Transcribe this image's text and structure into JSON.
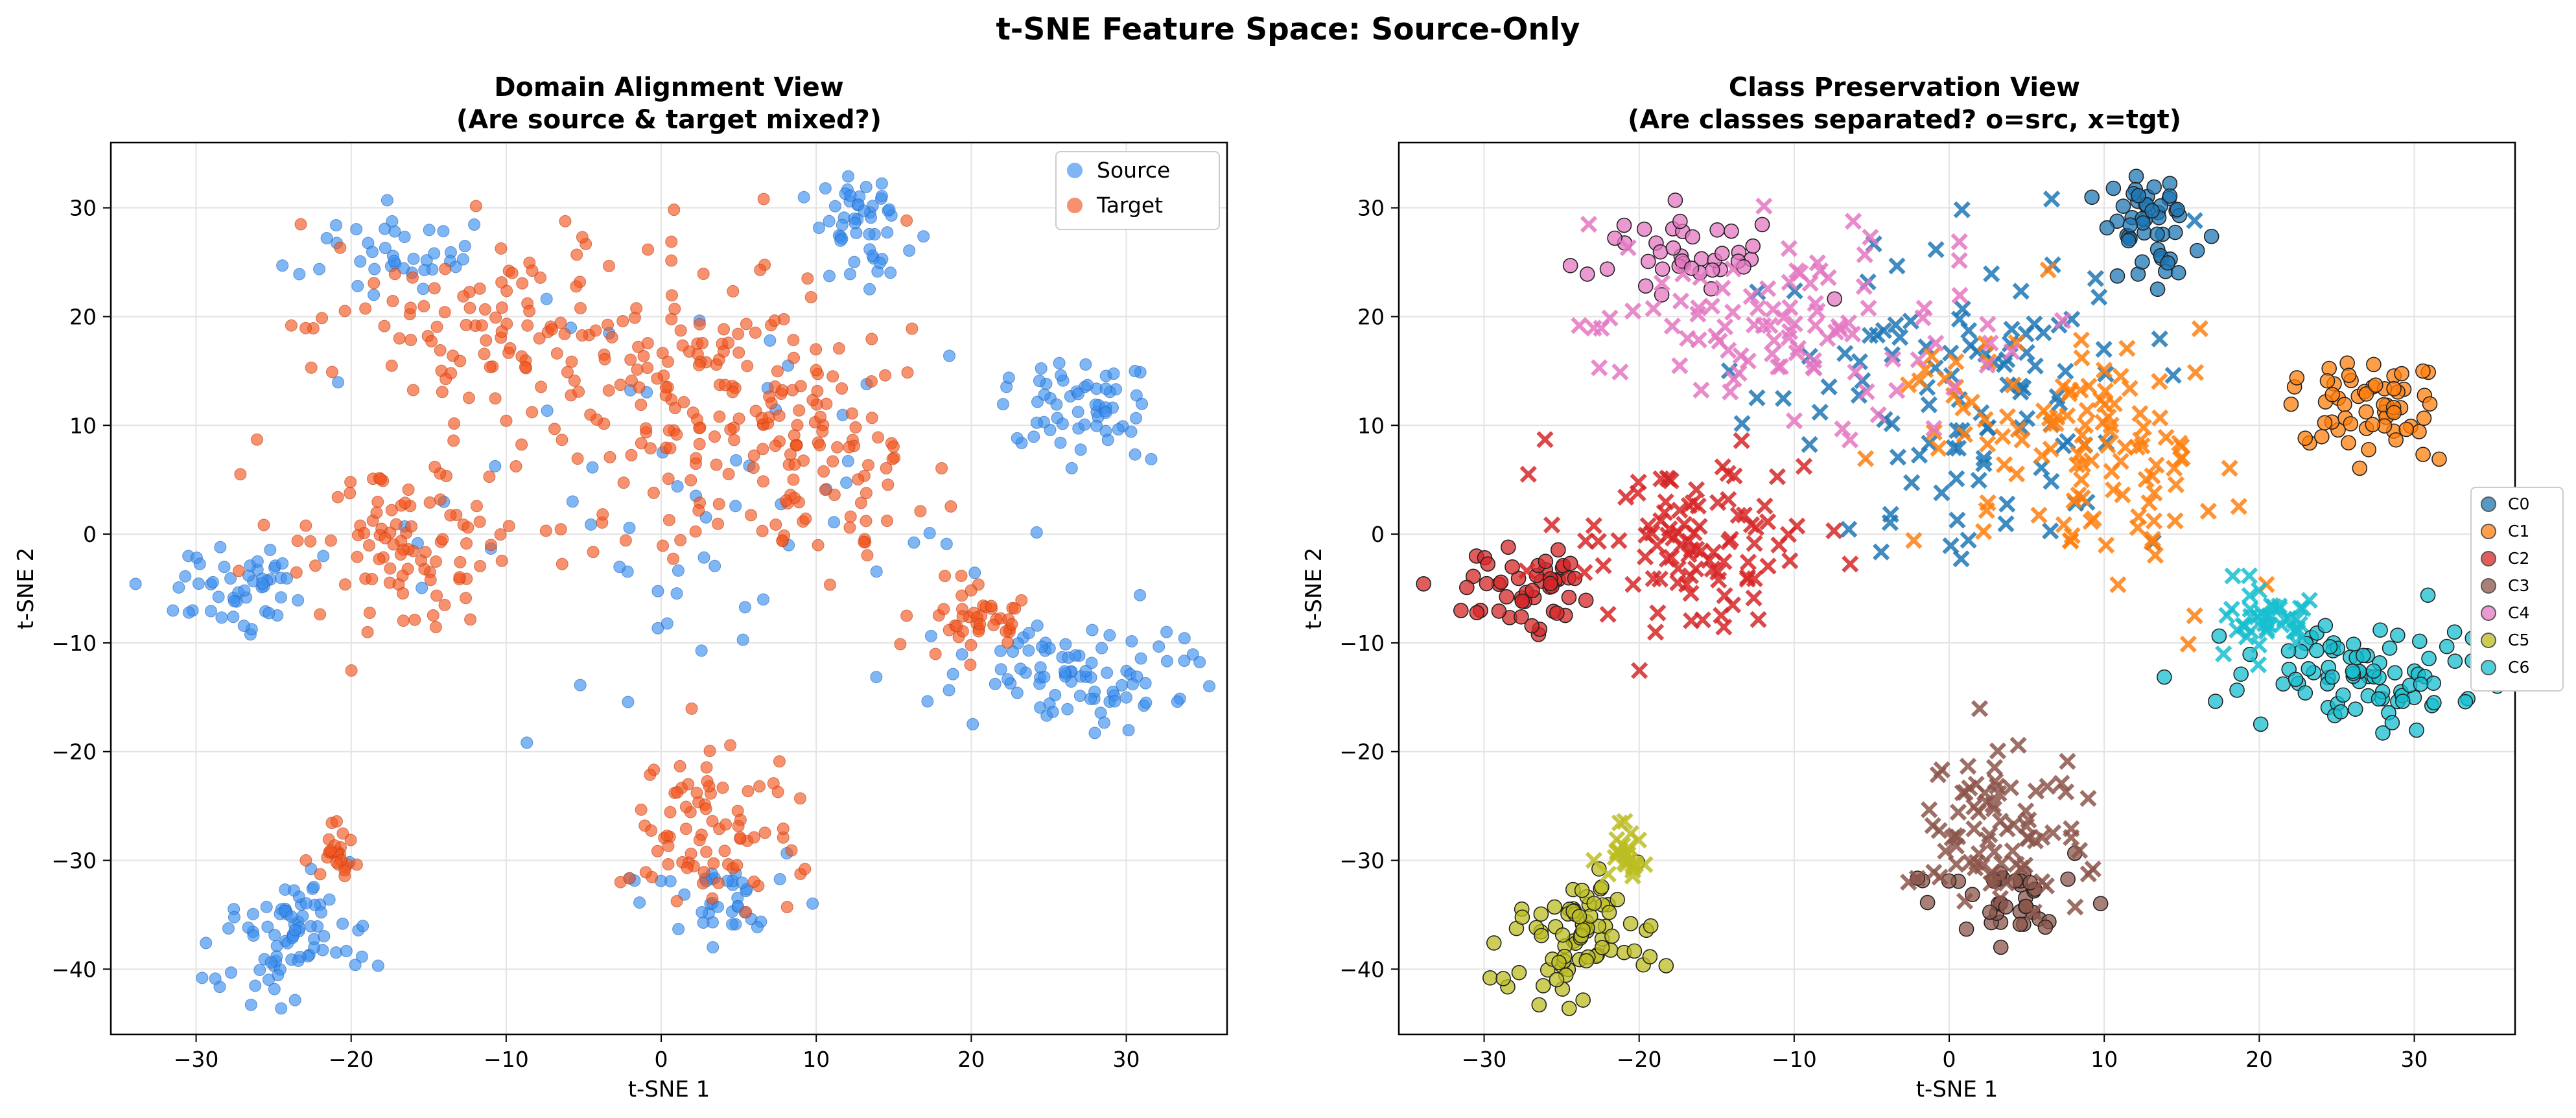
{
  "suptitle": "t-SNE Feature Space: Source-Only",
  "panels": [
    {
      "title_line1": "Domain Alignment View",
      "title_line2": "(Are source & target mixed?)"
    },
    {
      "title_line1": "Class Preservation View",
      "title_line2": "(Are classes separated? o=src, x=tgt)"
    }
  ],
  "colors": {
    "source": "#3b8fef",
    "target": "#f4561e",
    "C0": "#1f77b4",
    "C1": "#ff7f0e",
    "C2": "#d62728",
    "C3": "#8c564b",
    "C4": "#e377c2",
    "C5": "#bcbd22",
    "C6": "#17becf"
  },
  "legend_left": [
    {
      "label": "Source",
      "color": "#3b8fef"
    },
    {
      "label": "Target",
      "color": "#f4561e"
    }
  ],
  "legend_right": [
    {
      "label": "C0",
      "color": "#1f77b4"
    },
    {
      "label": "C1",
      "color": "#ff7f0e"
    },
    {
      "label": "C2",
      "color": "#d62728"
    },
    {
      "label": "C3",
      "color": "#8c564b"
    },
    {
      "label": "C4",
      "color": "#e377c2"
    },
    {
      "label": "C5",
      "color": "#bcbd22"
    },
    {
      "label": "C6",
      "color": "#17becf"
    }
  ],
  "chart_data": [
    {
      "type": "scatter",
      "title": "Domain Alignment View\n(Are source & target mixed?)",
      "xlabel": "t-SNE 1",
      "ylabel": "t-SNE 2",
      "xlim": [
        -35.5,
        36.5
      ],
      "ylim": [
        -46,
        36
      ],
      "xticks": [
        -30,
        -20,
        -10,
        0,
        10,
        20,
        30
      ],
      "yticks": [
        -40,
        -30,
        -20,
        -10,
        0,
        10,
        20,
        30
      ],
      "xticklabels": [
        "−30",
        "−20",
        "−10",
        "0",
        "10",
        "20",
        "30"
      ],
      "yticklabels": [
        "−40",
        "−30",
        "−20",
        "−10",
        "0",
        "10",
        "20",
        "30"
      ],
      "grid": true,
      "legend_position": "upper right",
      "series": [
        {
          "name": "Source",
          "marker": "o",
          "clusters": [
            {
              "class": "C0",
              "cx": 13,
              "cy": 28,
              "sx": 1.5,
              "sy": 2.5,
              "n": 50
            },
            {
              "class": "C1",
              "cx": 27,
              "cy": 12,
              "sx": 2.5,
              "sy": 2.2,
              "n": 60
            },
            {
              "class": "C2",
              "cx": -27,
              "cy": -5,
              "sx": 2.4,
              "sy": 1.8,
              "n": 50
            },
            {
              "class": "C3",
              "cx": 4,
              "cy": -34,
              "sx": 2.6,
              "sy": 2,
              "n": 40
            },
            {
              "class": "C4",
              "cx": -17,
              "cy": 26,
              "sx": 4,
              "sy": 2.2,
              "n": 40
            },
            {
              "class": "C5",
              "cx": -24,
              "cy": -37,
              "sx": 2,
              "sy": 3.2,
              "n": 80
            },
            {
              "class": "C6",
              "cx": 26,
              "cy": -13,
              "sx": 4.5,
              "sy": 2.3,
              "n": 90
            },
            {
              "class": "scattered",
              "cx": 2,
              "cy": 3,
              "sx": 10,
              "sy": 10,
              "n": 60
            }
          ]
        },
        {
          "name": "Target",
          "marker": "o",
          "clusters": [
            {
              "class": "C0",
              "cx": 3,
              "cy": 13,
              "sx": 7,
              "sy": 7,
              "n": 110
            },
            {
              "class": "C1",
              "cx": 8,
              "cy": 7,
              "sx": 4.5,
              "sy": 6,
              "n": 120
            },
            {
              "class": "C2",
              "cx": -16,
              "cy": -1,
              "sx": 4,
              "sy": 4,
              "n": 100
            },
            {
              "class": "C3",
              "cx": 3,
              "cy": -27,
              "sx": 3,
              "sy": 3.5,
              "n": 80
            },
            {
              "class": "C4",
              "cx": -10,
              "cy": 19,
              "sx": 6,
              "sy": 4,
              "n": 100
            },
            {
              "class": "C5",
              "cx": -21,
              "cy": -29.5,
              "sx": 0.6,
              "sy": 1.2,
              "n": 25
            },
            {
              "class": "C6",
              "cx": 20,
              "cy": -8,
              "sx": 1.5,
              "sy": 1.5,
              "n": 40
            }
          ]
        }
      ]
    },
    {
      "type": "scatter",
      "title": "Class Preservation View\n(Are classes separated? o=src, x=tgt)",
      "xlabel": "t-SNE 1",
      "ylabel": "t-SNE 2",
      "xlim": [
        -35.5,
        36.5
      ],
      "ylim": [
        -46,
        36
      ],
      "xticks": [
        -30,
        -20,
        -10,
        0,
        10,
        20,
        30
      ],
      "yticks": [
        -40,
        -30,
        -20,
        -10,
        0,
        10,
        20,
        30
      ],
      "xticklabels": [
        "−30",
        "−20",
        "−10",
        "0",
        "10",
        "20",
        "30"
      ],
      "yticklabels": [
        "−40",
        "−30",
        "−20",
        "−10",
        "0",
        "10",
        "20",
        "30"
      ],
      "grid": true,
      "legend_position": "outside right",
      "series": [
        {
          "name": "C0",
          "source_cluster": {
            "cx": 13,
            "cy": 28,
            "sx": 1.5,
            "sy": 2.5,
            "n": 50
          },
          "target_cluster": {
            "cx": 3,
            "cy": 13,
            "sx": 7,
            "sy": 7,
            "n": 110
          }
        },
        {
          "name": "C1",
          "source_cluster": {
            "cx": 27,
            "cy": 12,
            "sx": 2.5,
            "sy": 2.2,
            "n": 60
          },
          "target_cluster": {
            "cx": 8,
            "cy": 7,
            "sx": 4.5,
            "sy": 6,
            "n": 120
          }
        },
        {
          "name": "C2",
          "source_cluster": {
            "cx": -27,
            "cy": -5,
            "sx": 2.4,
            "sy": 1.8,
            "n": 50
          },
          "target_cluster": {
            "cx": -16,
            "cy": -1,
            "sx": 4,
            "sy": 4,
            "n": 100
          }
        },
        {
          "name": "C3",
          "source_cluster": {
            "cx": 4,
            "cy": -34,
            "sx": 2.6,
            "sy": 2,
            "n": 40
          },
          "target_cluster": {
            "cx": 3,
            "cy": -27,
            "sx": 3,
            "sy": 3.5,
            "n": 80
          }
        },
        {
          "name": "C4",
          "source_cluster": {
            "cx": -17,
            "cy": 26,
            "sx": 4,
            "sy": 2.2,
            "n": 40
          },
          "target_cluster": {
            "cx": -10,
            "cy": 19,
            "sx": 6,
            "sy": 4,
            "n": 100
          }
        },
        {
          "name": "C5",
          "source_cluster": {
            "cx": -24,
            "cy": -37,
            "sx": 2,
            "sy": 3.2,
            "n": 80
          },
          "target_cluster": {
            "cx": -21,
            "cy": -29.5,
            "sx": 0.6,
            "sy": 1.2,
            "n": 25
          }
        },
        {
          "name": "C6",
          "source_cluster": {
            "cx": 26,
            "cy": -13,
            "sx": 4.5,
            "sy": 2.3,
            "n": 90
          },
          "target_cluster": {
            "cx": 20,
            "cy": -8,
            "sx": 1.5,
            "sy": 1.5,
            "n": 40
          }
        }
      ]
    }
  ]
}
